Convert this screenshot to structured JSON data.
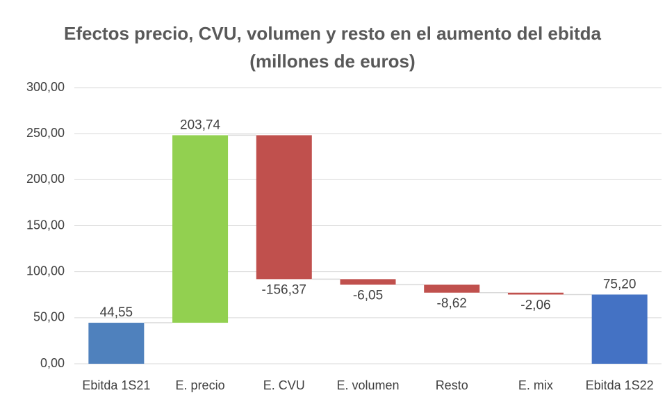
{
  "chart_data": {
    "type": "waterfall",
    "title": "Efectos precio, CVU, volumen y resto en el aumento del ebitda (millones de euros)",
    "categories": [
      "Ebitda 1S21",
      "E. precio",
      "E. CVU",
      "E. volumen",
      "Resto",
      "E. mix",
      "Ebitda 1S22"
    ],
    "values": [
      44.55,
      203.74,
      -156.37,
      -6.05,
      -8.62,
      -2.06,
      75.2
    ],
    "value_labels": [
      "44,55",
      "203,74",
      "-156,37",
      "-6,05",
      "-8,62",
      "-2,06",
      "75,20"
    ],
    "colors": [
      "#4f81bd",
      "#92d050",
      "#c0504d",
      "#c0504d",
      "#c0504d",
      "#c0504d",
      "#4472c4"
    ],
    "ylim": [
      0,
      300
    ],
    "yticks": [
      {
        "value": 0,
        "label": "0,00"
      },
      {
        "value": 50,
        "label": "50,00"
      },
      {
        "value": 100,
        "label": "100,00"
      },
      {
        "value": 150,
        "label": "150,00"
      },
      {
        "value": 200,
        "label": "200,00"
      },
      {
        "value": 250,
        "label": "250,00"
      },
      {
        "value": 300,
        "label": "300,00"
      }
    ],
    "grid": true
  }
}
